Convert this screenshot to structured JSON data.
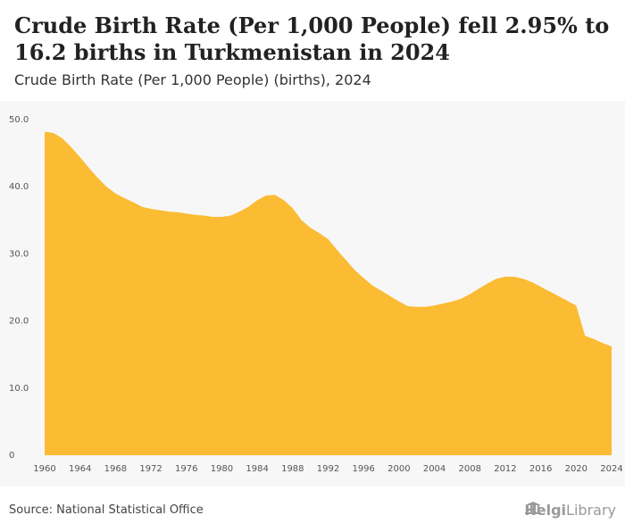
{
  "header": {
    "title": "Crude Birth Rate (Per 1,000 People) fell 2.95% to 16.2 births in Turkmenistan in 2024",
    "subtitle": "Crude Birth Rate (Per 1,000 People) (births), 2024"
  },
  "footer": {
    "source": "Source: National Statistical Office",
    "logo_part1": "Helgi",
    "logo_part2": "Library",
    "logo_icon": "library-building-icon"
  },
  "colors": {
    "area_fill": "#FBBB33",
    "background": "#f7f7f7"
  },
  "chart_data": {
    "type": "area",
    "title": "Crude Birth Rate (Per 1,000 People) fell 2.95% to 16.2 births in Turkmenistan in 2024",
    "xlabel": "",
    "ylabel": "",
    "xlim": [
      1960,
      2024
    ],
    "ylim": [
      0,
      50
    ],
    "y_ticks": [
      0,
      10,
      20,
      30,
      40,
      50
    ],
    "y_tick_labels": [
      "0",
      "10.0",
      "20.0",
      "30.0",
      "40.0",
      "50.0"
    ],
    "x_ticks": [
      1960,
      1964,
      1968,
      1972,
      1976,
      1980,
      1984,
      1988,
      1992,
      1996,
      2000,
      2004,
      2008,
      2012,
      2016,
      2020,
      2024
    ],
    "x_tick_labels": [
      "1960",
      "1964",
      "1968",
      "1972",
      "1976",
      "1980",
      "1984",
      "1988",
      "1992",
      "1996",
      "2000",
      "2004",
      "2008",
      "2012",
      "2016",
      "2020",
      "2024"
    ],
    "grid": false,
    "x": [
      1960,
      1961,
      1962,
      1963,
      1964,
      1965,
      1966,
      1967,
      1968,
      1969,
      1970,
      1971,
      1972,
      1973,
      1974,
      1975,
      1976,
      1977,
      1978,
      1979,
      1980,
      1981,
      1982,
      1983,
      1984,
      1985,
      1986,
      1987,
      1988,
      1989,
      1990,
      1991,
      1992,
      1993,
      1994,
      1995,
      1996,
      1997,
      1998,
      1999,
      2000,
      2001,
      2002,
      2003,
      2004,
      2005,
      2006,
      2007,
      2008,
      2009,
      2010,
      2011,
      2012,
      2013,
      2014,
      2015,
      2016,
      2017,
      2018,
      2019,
      2020,
      2021,
      2022,
      2023,
      2024
    ],
    "series": [
      {
        "values": [
          48.2,
          48.0,
          47.2,
          45.9,
          44.4,
          42.8,
          41.3,
          40.0,
          39.0,
          38.3,
          37.7,
          37.0,
          36.7,
          36.5,
          36.3,
          36.2,
          36.0,
          35.8,
          35.7,
          35.5,
          35.5,
          35.7,
          36.3,
          37.0,
          38.0,
          38.7,
          38.8,
          38.0,
          36.8,
          35.0,
          33.9,
          33.1,
          32.2,
          30.6,
          29.1,
          27.6,
          26.4,
          25.3,
          24.5,
          23.7,
          22.9,
          22.2,
          22.1,
          22.1,
          22.3,
          22.6,
          22.9,
          23.3,
          24.0,
          24.8,
          25.6,
          26.3,
          26.6,
          26.6,
          26.3,
          25.8,
          25.1,
          24.4,
          23.7,
          23.0,
          22.3,
          17.8,
          17.3,
          16.7,
          16.2
        ]
      }
    ]
  }
}
